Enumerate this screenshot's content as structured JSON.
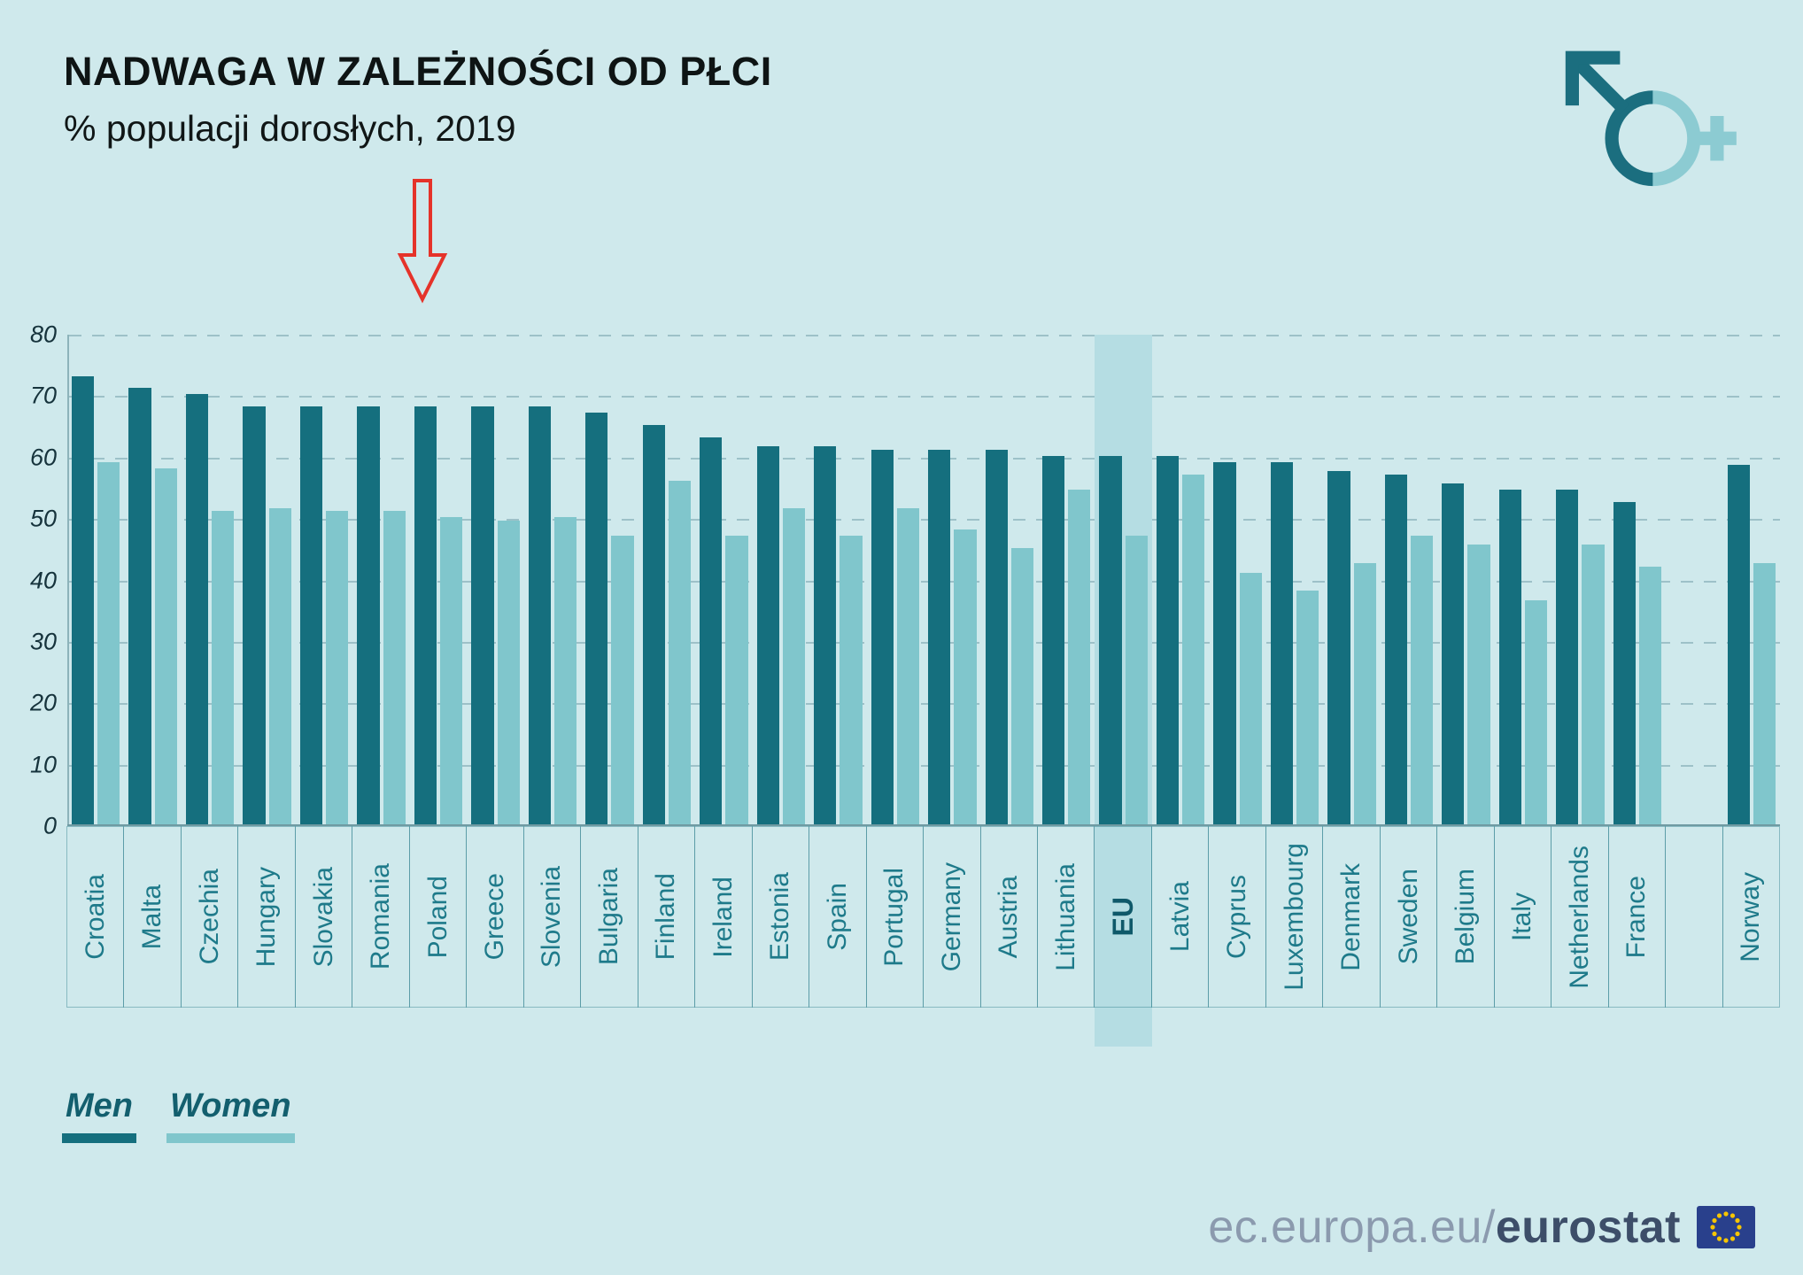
{
  "header": {
    "title": "NADWAGA W ZALEŻNOŚCI OD PŁCI",
    "subtitle": "% populacji dorosłych, 2019"
  },
  "legend": {
    "men": "Men",
    "women": "Women"
  },
  "footer": {
    "url_prefix": "ec.europa.eu/",
    "url_bold": "eurostat"
  },
  "colors": {
    "background": "#cfe9ec",
    "men": "#156f7e",
    "women": "#80c6cc",
    "eu_band": "#b5dde3",
    "arrow_red": "#e5332a",
    "grid": "#9dc1c8",
    "label_teal": "#1e7a8a",
    "footer_gray": "#8b9aae",
    "footer_dark": "#3d4e69",
    "eu_flag_blue": "#29408c",
    "eu_flag_star": "#f7c500"
  },
  "icons": {
    "gender": "gender-mars-venus-icon",
    "arrow": "red-arrow-annotation",
    "flag": "eu-flag-icon"
  },
  "chart_data": {
    "type": "bar",
    "title": "NADWAGA W ZALEŻNOŚCI OD PŁCI",
    "subtitle": "% populacji dorosłych, 2019",
    "ylim": [
      0,
      80
    ],
    "yticks": [
      0,
      10,
      20,
      30,
      40,
      50,
      60,
      70,
      80
    ],
    "grid": "horizontal-dashed",
    "legend_position": "bottom-left",
    "highlight_category": "EU",
    "annotation": "red outlined arrow pointing down at Poland",
    "categories": [
      "Croatia",
      "Malta",
      "Czechia",
      "Hungary",
      "Slovakia",
      "Romania",
      "Poland",
      "Greece",
      "Slovenia",
      "Bulgaria",
      "Finland",
      "Ireland",
      "Estonia",
      "Spain",
      "Portugal",
      "Germany",
      "Austria",
      "Lithuania",
      "EU",
      "Latvia",
      "Cyprus",
      "Luxembourg",
      "Denmark",
      "Sweden",
      "Belgium",
      "Italy",
      "Netherlands",
      "France",
      "",
      "Norway"
    ],
    "series": [
      {
        "name": "Men",
        "values": [
          73,
          71,
          70,
          68,
          68,
          68,
          68,
          68,
          68,
          67,
          65,
          63,
          61.5,
          61.5,
          61,
          61,
          61,
          60,
          60,
          60,
          59,
          59,
          57.5,
          57,
          55.5,
          54.5,
          54.5,
          52.5,
          null,
          58.5
        ]
      },
      {
        "name": "Women",
        "values": [
          59,
          58,
          51,
          51.5,
          51,
          51,
          50,
          49.5,
          50,
          47,
          56,
          47,
          51.5,
          47,
          51.5,
          48,
          45,
          54.5,
          47,
          57,
          41,
          38,
          42.5,
          47,
          45.5,
          36.5,
          45.5,
          42,
          null,
          42.5
        ]
      }
    ]
  }
}
